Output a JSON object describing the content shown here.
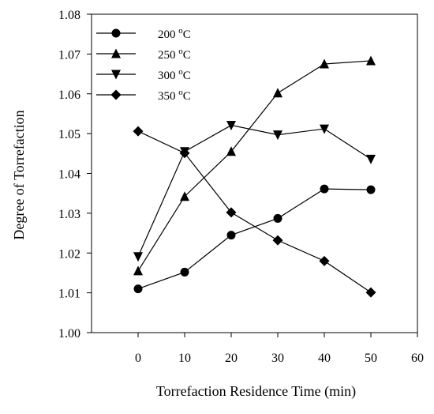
{
  "chart_data": {
    "type": "line",
    "xlabel": "Torrefaction Residence Time (min)",
    "ylabel": "Degree of Torrefaction",
    "xlim": [
      -10,
      60
    ],
    "ylim": [
      1.0,
      1.08
    ],
    "xticks": [
      0,
      10,
      20,
      30,
      40,
      50,
      60
    ],
    "xtick_labels": [
      "0",
      "10",
      "20",
      "30",
      "40",
      "50",
      "60"
    ],
    "yticks": [
      1.0,
      1.01,
      1.02,
      1.03,
      1.04,
      1.05,
      1.06,
      1.07,
      1.08
    ],
    "ytick_labels": [
      "1.00",
      "1.01",
      "1.02",
      "1.03",
      "1.04",
      "1.05",
      "1.06",
      "1.07",
      "1.08"
    ],
    "x": [
      0,
      10,
      20,
      30,
      40,
      50
    ],
    "grid": false,
    "legend_position": "top-left",
    "series": [
      {
        "name": "200 °C",
        "temp": "200",
        "unit": "C",
        "marker": "circle",
        "values": [
          1.011,
          1.0152,
          1.0245,
          1.0287,
          1.0361,
          1.0359
        ]
      },
      {
        "name": "250 °C",
        "temp": "250",
        "unit": "C",
        "marker": "triangle-up",
        "values": [
          1.0155,
          1.0342,
          1.0455,
          1.0602,
          1.0675,
          1.0683
        ]
      },
      {
        "name": "300 °C",
        "temp": "300",
        "unit": "C",
        "marker": "triangle-down",
        "values": [
          1.0191,
          1.0455,
          1.0521,
          1.0497,
          1.0512,
          1.0436
        ]
      },
      {
        "name": "350 °C",
        "temp": "350",
        "unit": "C",
        "marker": "diamond",
        "values": [
          1.0506,
          1.0451,
          1.0302,
          1.0232,
          1.018,
          1.0101
        ]
      }
    ]
  }
}
